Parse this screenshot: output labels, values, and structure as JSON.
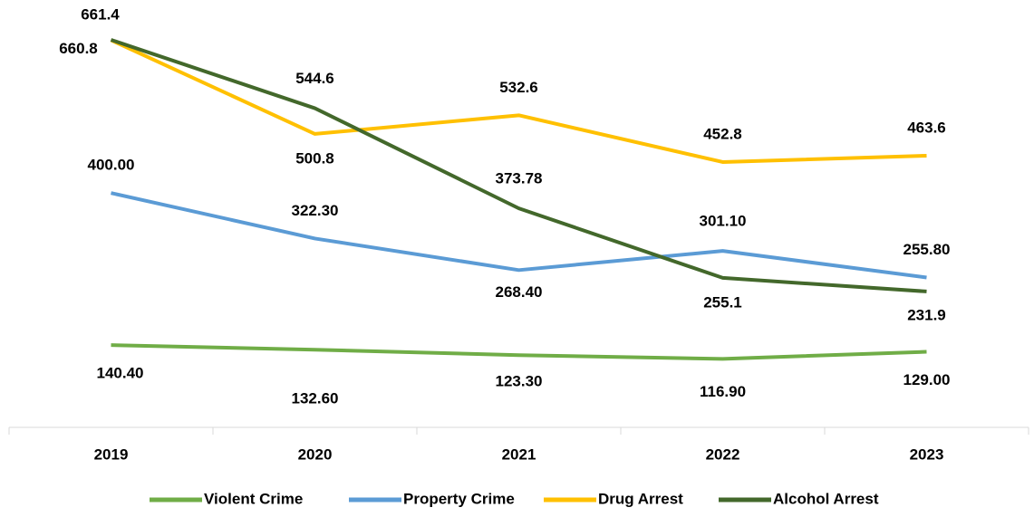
{
  "chart_data": {
    "type": "line",
    "categories": [
      "2019",
      "2020",
      "2021",
      "2022",
      "2023"
    ],
    "ylim": [
      0,
      700
    ],
    "legend": "bottom",
    "series": [
      {
        "name": "Violent Crime",
        "color": "#70ad47",
        "values": [
          140.4,
          132.6,
          123.3,
          116.9,
          129.0
        ],
        "value_labels": [
          "140.40",
          "132.60",
          "123.30",
          "116.90",
          "129.00"
        ]
      },
      {
        "name": "Property Crime",
        "color": "#5b9bd5",
        "values": [
          400.0,
          322.3,
          268.4,
          301.1,
          255.8
        ],
        "value_labels": [
          "400.00",
          "322.30",
          "268.40",
          "301.10",
          "255.80"
        ]
      },
      {
        "name": "Drug Arrest",
        "color": "#ffc000",
        "values": [
          660.8,
          500.8,
          532.6,
          452.8,
          463.6
        ]
      },
      {
        "name": "Alcohol Arrest",
        "color": "#43682b",
        "values": [
          661.4,
          544.6,
          373.78,
          255.1,
          231.9
        ]
      }
    ]
  }
}
